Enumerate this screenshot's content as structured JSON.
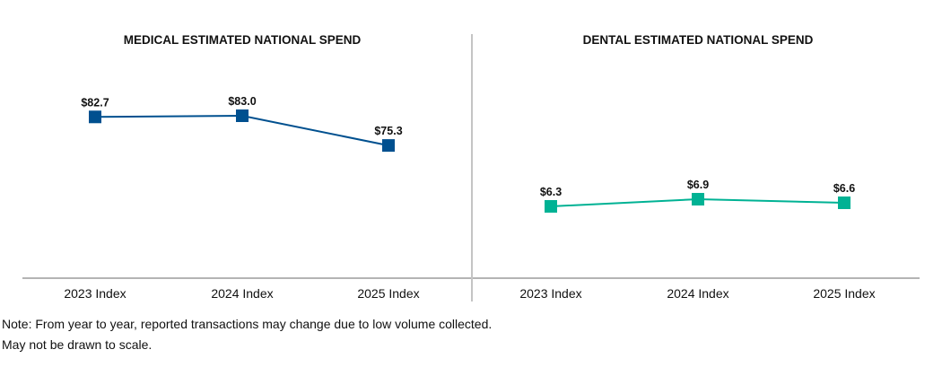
{
  "chart_data": [
    {
      "type": "line",
      "title": "MEDICAL ESTIMATED NATIONAL SPEND",
      "categories": [
        "2023 Index",
        "2024 Index",
        "2025 Index"
      ],
      "values": [
        82.7,
        83.0,
        75.3
      ],
      "labels": [
        "$82.7",
        "$83.0",
        "$75.3"
      ],
      "color": "#00508f",
      "xlabel": "",
      "ylabel": ""
    },
    {
      "type": "line",
      "title": "DENTAL ESTIMATED NATIONAL SPEND",
      "categories": [
        "2023 Index",
        "2024 Index",
        "2025 Index"
      ],
      "values": [
        6.3,
        6.9,
        6.6
      ],
      "labels": [
        "$6.3",
        "$6.9",
        "$6.6"
      ],
      "color": "#00b294",
      "xlabel": "",
      "ylabel": ""
    }
  ],
  "notes": [
    "Note: From year to year, reported transactions may change due to low volume collected.",
    "May not be drawn to scale."
  ]
}
